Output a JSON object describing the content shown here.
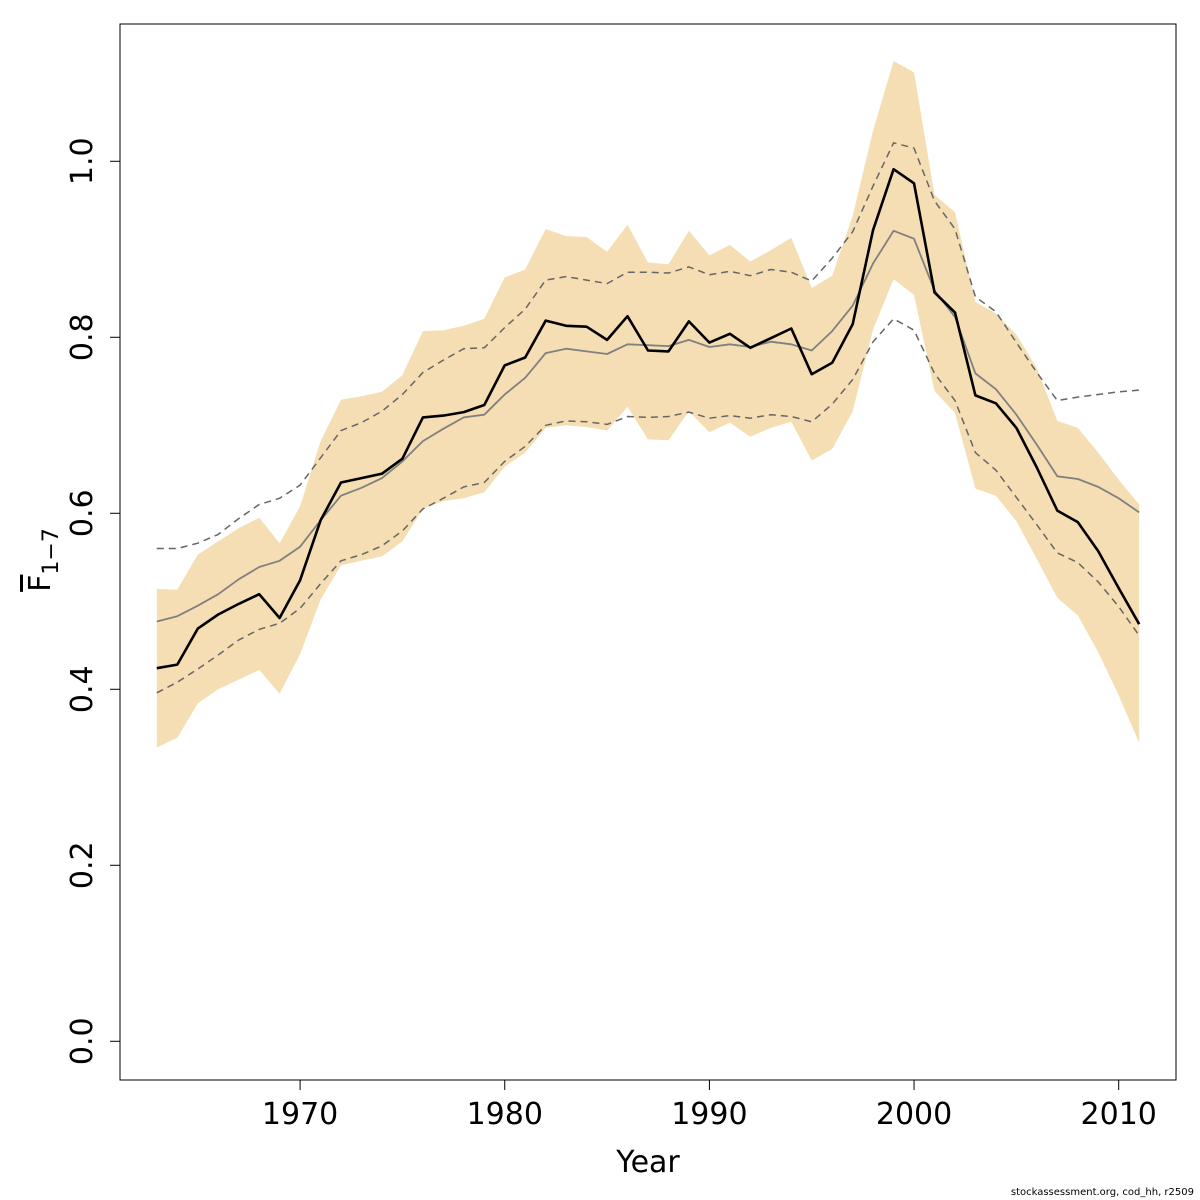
{
  "chart_data": {
    "type": "line",
    "title": "",
    "xlabel": "Year",
    "ylabel": {
      "base": "F",
      "subscript": "1−7"
    },
    "xlim": [
      1961.2,
      2012.8
    ],
    "ylim": [
      -0.044,
      1.156
    ],
    "x_ticks": [
      1970,
      1980,
      1990,
      2000,
      2010
    ],
    "y_ticks": [
      0.0,
      0.2,
      0.4,
      0.6,
      0.8,
      1.0
    ],
    "y_tick_labels": [
      "0.0",
      "0.2",
      "0.4",
      "0.6",
      "0.8",
      "1.0"
    ],
    "grid": false,
    "legend": "none",
    "colors": {
      "band": "#f5deb3",
      "estimate": "#000000",
      "median": "#808080",
      "dashed": "#666666",
      "axis": "#000000"
    },
    "x": [
      1963,
      1964,
      1965,
      1966,
      1967,
      1968,
      1969,
      1970,
      1971,
      1972,
      1973,
      1974,
      1975,
      1976,
      1977,
      1978,
      1979,
      1980,
      1981,
      1982,
      1983,
      1984,
      1985,
      1986,
      1987,
      1988,
      1989,
      1990,
      1991,
      1992,
      1993,
      1994,
      1995,
      1996,
      1997,
      1998,
      1999,
      2000,
      2001,
      2002,
      2003,
      2004,
      2005,
      2006,
      2007,
      2008,
      2009,
      2010,
      2011
    ],
    "series": [
      {
        "role": "confidence-band",
        "upper": [
          0.514,
          0.513,
          0.553,
          0.568,
          0.583,
          0.595,
          0.566,
          0.608,
          0.682,
          0.729,
          0.733,
          0.738,
          0.757,
          0.807,
          0.808,
          0.813,
          0.821,
          0.868,
          0.877,
          0.923,
          0.915,
          0.914,
          0.897,
          0.928,
          0.885,
          0.883,
          0.921,
          0.893,
          0.905,
          0.886,
          0.899,
          0.913,
          0.856,
          0.87,
          0.938,
          1.035,
          1.114,
          1.101,
          0.962,
          0.942,
          0.84,
          0.827,
          0.803,
          0.765,
          0.705,
          0.697,
          0.669,
          0.638,
          0.61
        ],
        "lower": [
          0.334,
          0.345,
          0.384,
          0.4,
          0.411,
          0.422,
          0.395,
          0.44,
          0.502,
          0.541,
          0.546,
          0.551,
          0.568,
          0.605,
          0.614,
          0.617,
          0.624,
          0.653,
          0.669,
          0.697,
          0.7,
          0.698,
          0.694,
          0.721,
          0.684,
          0.683,
          0.716,
          0.692,
          0.703,
          0.687,
          0.697,
          0.704,
          0.66,
          0.673,
          0.716,
          0.809,
          0.866,
          0.848,
          0.739,
          0.714,
          0.628,
          0.62,
          0.591,
          0.548,
          0.504,
          0.484,
          0.442,
          0.393,
          0.339
        ]
      },
      {
        "role": "estimate",
        "values": [
          0.424,
          0.428,
          0.469,
          0.485,
          0.497,
          0.508,
          0.481,
          0.524,
          0.592,
          0.635,
          0.64,
          0.645,
          0.662,
          0.709,
          0.711,
          0.715,
          0.723,
          0.768,
          0.777,
          0.819,
          0.813,
          0.812,
          0.797,
          0.824,
          0.785,
          0.784,
          0.818,
          0.794,
          0.804,
          0.788,
          0.799,
          0.81,
          0.758,
          0.771,
          0.815,
          0.922,
          0.991,
          0.975,
          0.851,
          0.828,
          0.734,
          0.725,
          0.697,
          0.652,
          0.603,
          0.59,
          0.557,
          0.515,
          0.474
        ]
      },
      {
        "role": "median",
        "values": [
          0.477,
          0.483,
          0.495,
          0.508,
          0.525,
          0.539,
          0.546,
          0.562,
          0.592,
          0.62,
          0.629,
          0.64,
          0.659,
          0.682,
          0.696,
          0.709,
          0.712,
          0.735,
          0.754,
          0.782,
          0.787,
          0.784,
          0.781,
          0.792,
          0.791,
          0.79,
          0.797,
          0.789,
          0.792,
          0.789,
          0.795,
          0.792,
          0.785,
          0.807,
          0.836,
          0.884,
          0.921,
          0.912,
          0.853,
          0.823,
          0.759,
          0.741,
          0.712,
          0.678,
          0.642,
          0.639,
          0.63,
          0.617,
          0.601
        ]
      },
      {
        "role": "upper-dashed",
        "values": [
          0.56,
          0.56,
          0.566,
          0.576,
          0.594,
          0.61,
          0.617,
          0.632,
          0.663,
          0.694,
          0.703,
          0.716,
          0.735,
          0.76,
          0.774,
          0.787,
          0.788,
          0.811,
          0.832,
          0.865,
          0.869,
          0.865,
          0.861,
          0.874,
          0.874,
          0.873,
          0.88,
          0.871,
          0.875,
          0.87,
          0.877,
          0.874,
          0.864,
          0.89,
          0.92,
          0.972,
          1.021,
          1.015,
          0.955,
          0.923,
          0.846,
          0.829,
          0.794,
          0.76,
          0.728,
          0.732,
          0.735,
          0.738,
          0.74
        ]
      },
      {
        "role": "lower-dashed",
        "values": [
          0.396,
          0.408,
          0.423,
          0.439,
          0.456,
          0.468,
          0.475,
          0.492,
          0.52,
          0.546,
          0.553,
          0.563,
          0.58,
          0.605,
          0.617,
          0.63,
          0.635,
          0.659,
          0.676,
          0.7,
          0.705,
          0.704,
          0.701,
          0.71,
          0.709,
          0.71,
          0.715,
          0.708,
          0.711,
          0.708,
          0.712,
          0.71,
          0.704,
          0.724,
          0.752,
          0.795,
          0.821,
          0.808,
          0.759,
          0.728,
          0.669,
          0.649,
          0.618,
          0.587,
          0.555,
          0.544,
          0.522,
          0.494,
          0.461
        ]
      }
    ]
  },
  "footer": "stockassessment.org, cod_hh, r2509"
}
